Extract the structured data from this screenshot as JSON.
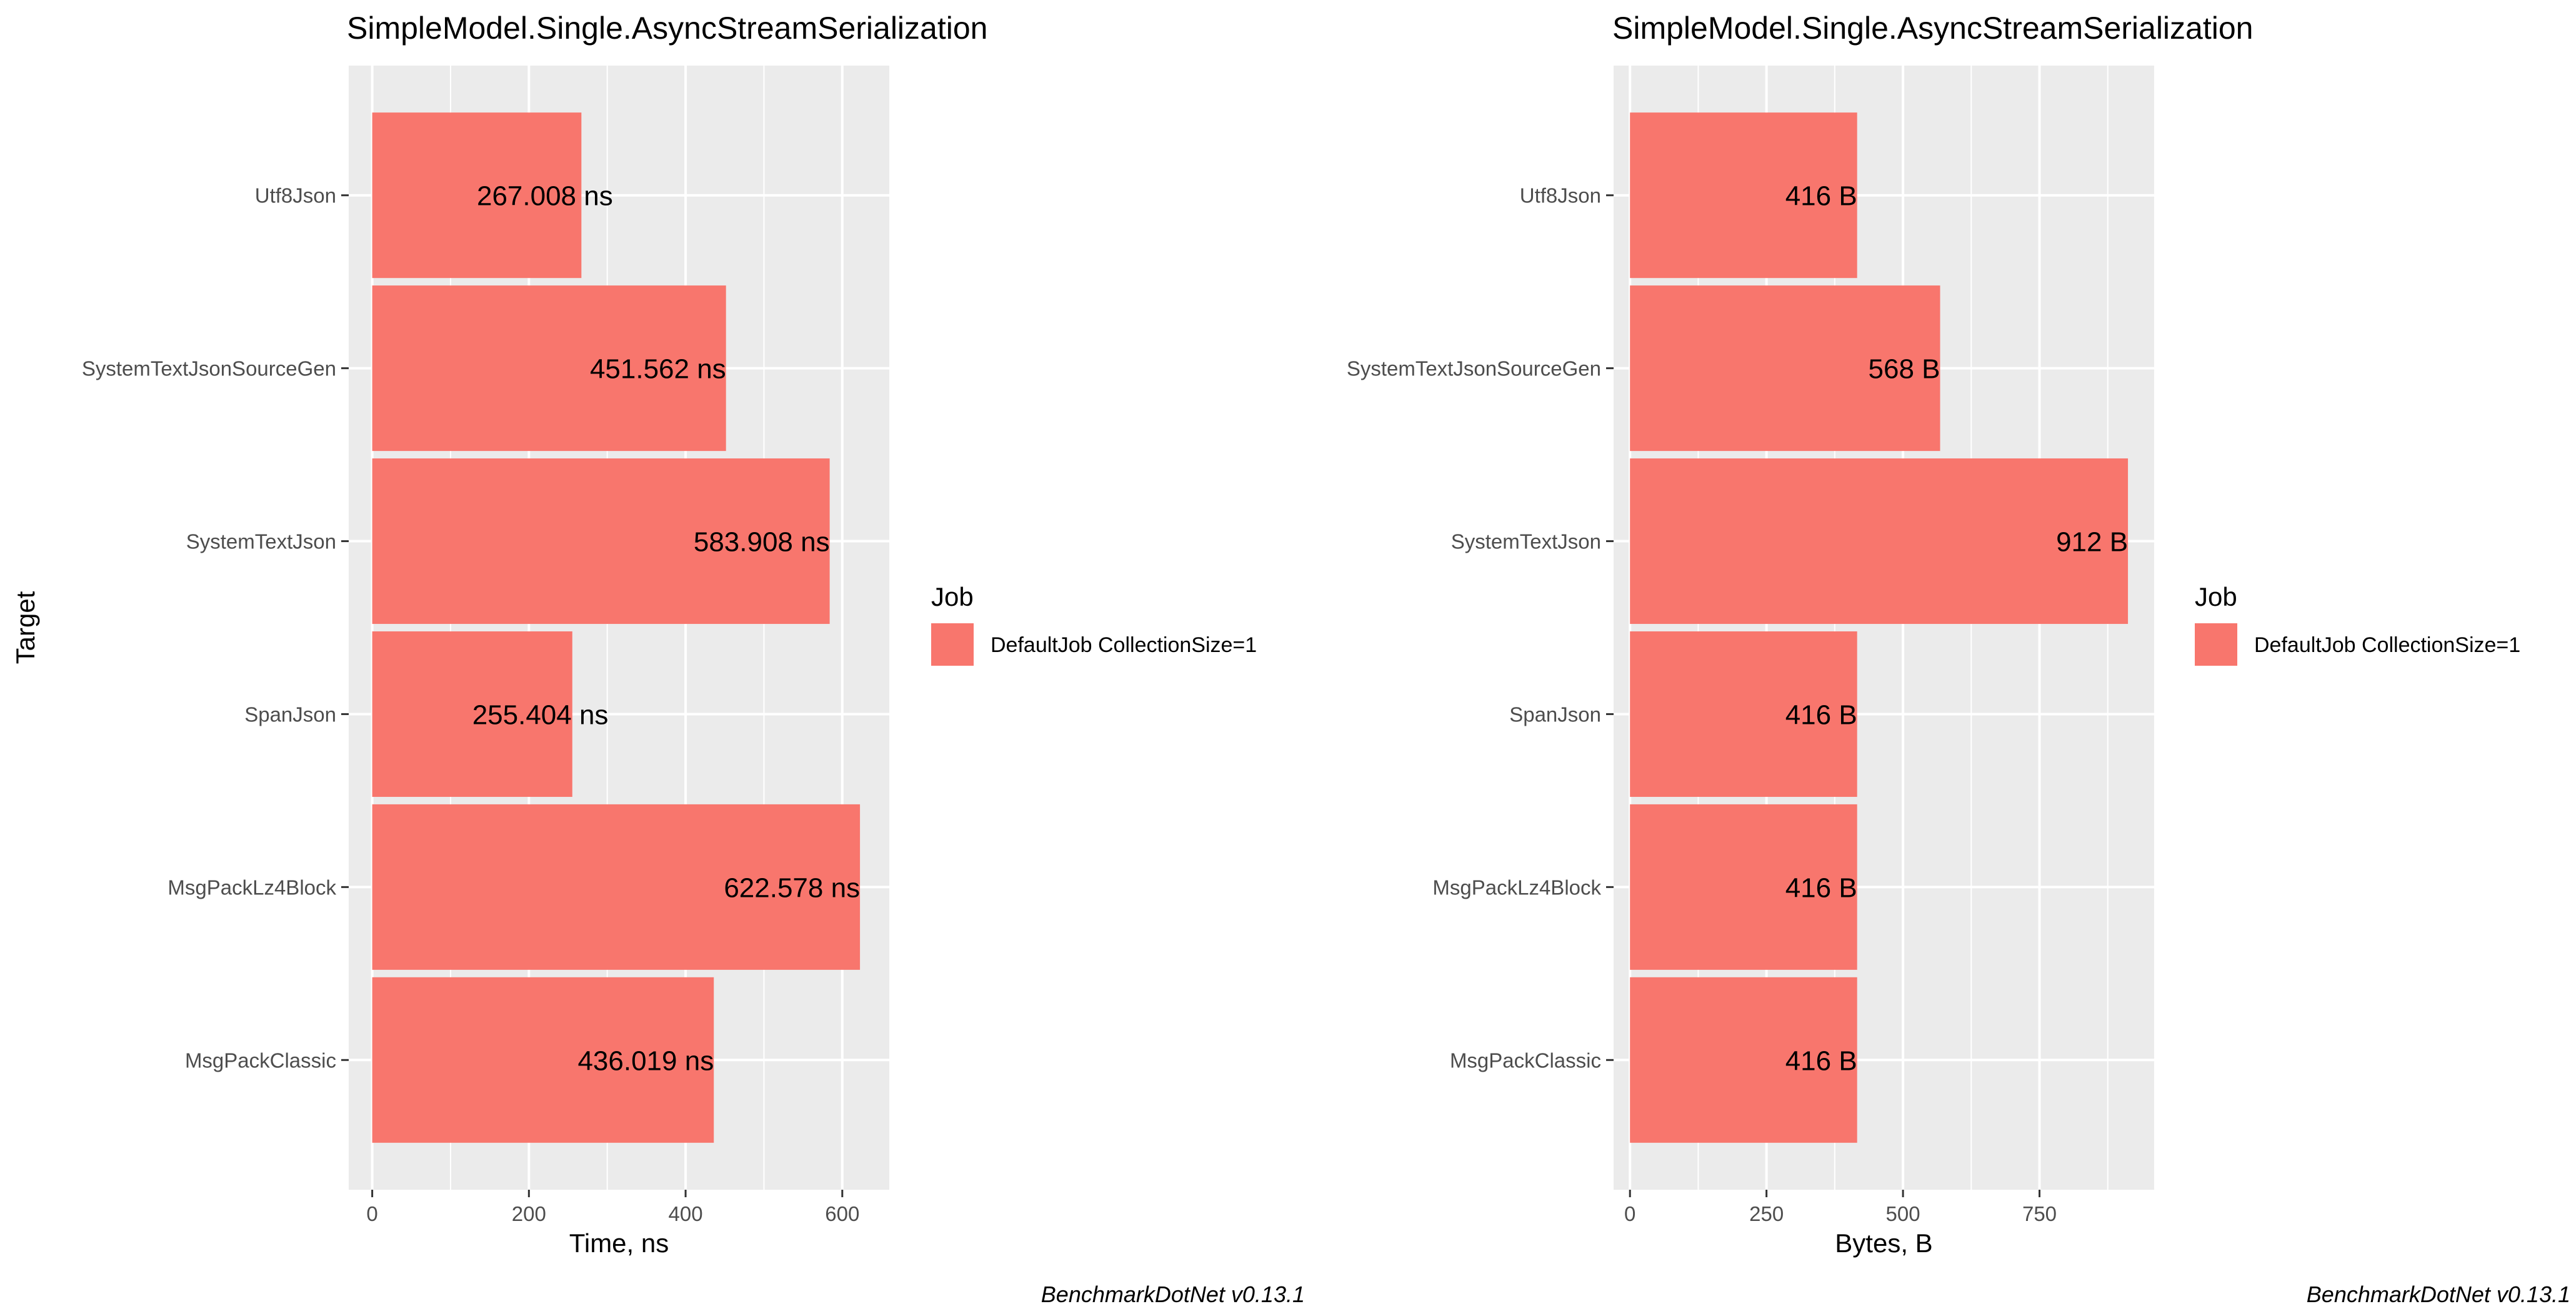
{
  "chart_data": [
    {
      "type": "bar",
      "orientation": "horizontal",
      "title": "SimpleModel.Single.AsyncStreamSerialization",
      "xlabel": "Time, ns",
      "ylabel": "Target",
      "xlim": [
        -30,
        660
      ],
      "x_ticks": [
        "0",
        "200",
        "400",
        "600"
      ],
      "grid": true,
      "categories": [
        "Utf8Json",
        "SystemTextJsonSourceGen",
        "SystemTextJson",
        "SpanJson",
        "MsgPackLz4Block",
        "MsgPackClassic"
      ],
      "values": [
        267.008,
        451.562,
        583.908,
        255.404,
        622.578,
        436.019
      ],
      "data_labels": [
        "267.008 ns",
        "451.562 ns",
        "583.908 ns",
        "255.404 ns",
        "622.578 ns",
        "436.019 ns"
      ],
      "series": [
        {
          "name": "DefaultJob CollectionSize=1",
          "color": "#f8766d"
        }
      ],
      "legend": {
        "title": "Job",
        "entries": [
          "DefaultJob CollectionSize=1"
        ],
        "placement": "right"
      },
      "caption": "BenchmarkDotNet v0.13.1"
    },
    {
      "type": "bar",
      "orientation": "horizontal",
      "title": "SimpleModel.Single.AsyncStreamSerialization",
      "xlabel": "Bytes, B",
      "ylabel": "",
      "xlim": [
        -30,
        960
      ],
      "x_ticks": [
        "0",
        "250",
        "500",
        "750"
      ],
      "grid": true,
      "categories": [
        "Utf8Json",
        "SystemTextJsonSourceGen",
        "SystemTextJson",
        "SpanJson",
        "MsgPackLz4Block",
        "MsgPackClassic"
      ],
      "values": [
        416,
        568,
        912,
        416,
        416,
        416
      ],
      "data_labels": [
        "416 B",
        "568 B",
        "912 B",
        "416 B",
        "416 B",
        "416 B"
      ],
      "series": [
        {
          "name": "DefaultJob CollectionSize=1",
          "color": "#f8766d"
        }
      ],
      "legend": {
        "title": "Job",
        "entries": [
          "DefaultJob CollectionSize=1"
        ],
        "placement": "right"
      },
      "caption": "BenchmarkDotNet v0.13.1"
    }
  ],
  "colors": {
    "panel_background": "#ebebeb",
    "gridline": "#ffffff",
    "bar_fill": "#f8766d"
  }
}
